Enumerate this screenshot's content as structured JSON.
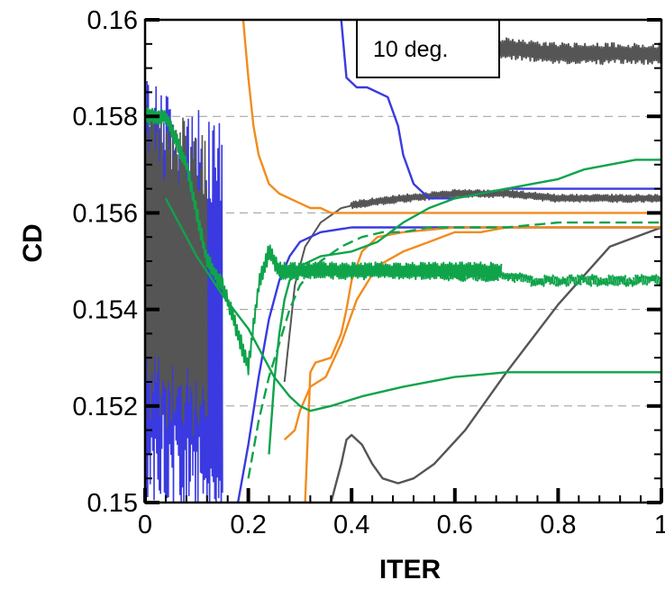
{
  "chart_data": {
    "type": "line",
    "title": "",
    "xlabel": "ITER",
    "ylabel": "CD",
    "xlim": [
      0,
      1
    ],
    "ylim": [
      0.15,
      0.16
    ],
    "x_ticks": [
      0,
      0.2,
      0.4,
      0.6,
      0.8,
      1
    ],
    "x_tick_labels": [
      "0",
      "0.2",
      "0.4",
      "0.6",
      "0.8",
      "1"
    ],
    "y_ticks": [
      0.15,
      0.152,
      0.154,
      0.156,
      0.158,
      0.16
    ],
    "y_tick_labels": [
      "0.15",
      "0.152",
      "0.154",
      "0.156",
      "0.158",
      "0.16"
    ],
    "grid": "horizontal dashed at major y ticks",
    "legend": "none",
    "annotation": "10 deg.",
    "colors": {
      "gray": "#555555",
      "blue": "#3a3ae0",
      "orange": "#f28c1e",
      "green": "#0fa34a"
    },
    "series": [
      {
        "color": "gray",
        "style": "solid",
        "noise": 8e-05,
        "noise_from": 0.4,
        "x": [
          0.27,
          0.29,
          0.31,
          0.34,
          0.38,
          0.42,
          0.5,
          0.6,
          0.7,
          0.8,
          0.9,
          1.0
        ],
        "y": [
          0.1525,
          0.1545,
          0.1553,
          0.1558,
          0.1561,
          0.1562,
          0.1563,
          0.1564,
          0.1564,
          0.1563,
          0.1563,
          0.1563
        ]
      },
      {
        "color": "gray",
        "style": "solid",
        "x": [
          0.36,
          0.38,
          0.39,
          0.4,
          0.42,
          0.44,
          0.46,
          0.49,
          0.52,
          0.56,
          0.62,
          0.7,
          0.8,
          0.9,
          1.0
        ],
        "y": [
          0.15,
          0.1508,
          0.1513,
          0.1514,
          0.1512,
          0.1508,
          0.1505,
          0.1504,
          0.1505,
          0.1508,
          0.1515,
          0.1527,
          0.1541,
          0.1553,
          0.1557
        ]
      },
      {
        "color": "gray",
        "style": "solid",
        "noise": 0.00022,
        "x": [
          0.67,
          0.7,
          0.8,
          0.9,
          1.0
        ],
        "y": [
          0.1594,
          0.1594,
          0.1593,
          0.1593,
          0.1593
        ]
      },
      {
        "color": "blue",
        "style": "solid",
        "x": [
          0.38,
          0.39,
          0.41,
          0.43,
          0.47,
          0.49,
          0.5,
          0.52,
          0.55,
          0.6,
          0.65,
          0.7,
          0.8,
          0.9,
          1.0
        ],
        "y": [
          0.16,
          0.1588,
          0.1586,
          0.1586,
          0.1584,
          0.1578,
          0.1572,
          0.1566,
          0.1563,
          0.1563,
          0.1564,
          0.1565,
          0.1565,
          0.1565,
          0.1565
        ]
      },
      {
        "color": "blue",
        "style": "solid",
        "x": [
          0.18,
          0.2,
          0.22,
          0.24,
          0.26,
          0.28,
          0.3,
          0.34,
          0.4,
          0.5,
          0.6,
          0.7,
          0.8,
          0.9,
          1.0
        ],
        "y": [
          0.15,
          0.1512,
          0.1526,
          0.1538,
          0.1546,
          0.1551,
          0.1554,
          0.1556,
          0.1557,
          0.1557,
          0.1557,
          0.1557,
          0.1557,
          0.1557,
          0.1557
        ]
      },
      {
        "color": "orange",
        "style": "solid",
        "x": [
          0.19,
          0.2,
          0.21,
          0.22,
          0.23,
          0.24,
          0.26,
          0.28,
          0.3,
          0.32,
          0.34,
          0.36,
          0.4,
          0.45,
          0.5,
          0.6,
          0.7,
          0.8,
          1.0
        ],
        "y": [
          0.16,
          0.1588,
          0.1578,
          0.1572,
          0.1569,
          0.1566,
          0.1564,
          0.1563,
          0.1562,
          0.1561,
          0.1561,
          0.156,
          0.156,
          0.156,
          0.156,
          0.156,
          0.156,
          0.156,
          0.156
        ]
      },
      {
        "color": "orange",
        "style": "solid",
        "x": [
          0.27,
          0.29,
          0.3,
          0.32,
          0.35,
          0.38,
          0.41,
          0.45,
          0.5,
          0.55,
          0.6,
          0.65,
          0.7,
          0.8,
          0.9,
          1.0
        ],
        "y": [
          0.1513,
          0.1515,
          0.1519,
          0.1524,
          0.1526,
          0.1533,
          0.1542,
          0.1549,
          0.1552,
          0.1554,
          0.1556,
          0.1556,
          0.1557,
          0.1557,
          0.1557,
          0.1557
        ]
      },
      {
        "color": "orange",
        "style": "solid",
        "x": [
          0.31,
          0.32,
          0.33,
          0.36,
          0.38,
          0.39,
          0.4,
          0.42,
          0.45,
          0.5,
          0.6,
          0.7
        ],
        "y": [
          0.15,
          0.1527,
          0.1529,
          0.153,
          0.1535,
          0.154,
          0.1546,
          0.1552,
          0.1555,
          0.1556,
          0.1557,
          0.1557
        ]
      },
      {
        "color": "green",
        "style": "solid",
        "x": [
          0.24,
          0.25,
          0.26,
          0.27,
          0.28,
          0.3,
          0.34,
          0.4,
          0.45,
          0.5,
          0.55,
          0.6,
          0.65,
          0.7,
          0.75,
          0.8,
          0.85,
          0.9,
          0.95,
          1.0
        ],
        "y": [
          0.151,
          0.1525,
          0.1535,
          0.1542,
          0.1546,
          0.1549,
          0.1551,
          0.1552,
          0.1554,
          0.1558,
          0.1561,
          0.1563,
          0.1564,
          0.1565,
          0.1566,
          0.1567,
          0.1569,
          0.157,
          0.1571,
          0.1571
        ]
      },
      {
        "color": "green",
        "style": "solid",
        "x": [
          0.04,
          0.1,
          0.15,
          0.2,
          0.25,
          0.28,
          0.3,
          0.32,
          0.36,
          0.42,
          0.5,
          0.6,
          0.7,
          0.8,
          0.9,
          1.0
        ],
        "y": [
          0.1563,
          0.1551,
          0.1543,
          0.1536,
          0.1526,
          0.1522,
          0.152,
          0.1519,
          0.152,
          0.1522,
          0.1524,
          0.1526,
          0.1527,
          0.1527,
          0.1527,
          0.1527
        ]
      },
      {
        "color": "green",
        "style": "dashed",
        "x": [
          0.2,
          0.22,
          0.24,
          0.26,
          0.28,
          0.3,
          0.34,
          0.38,
          0.42,
          0.46,
          0.5,
          0.55,
          0.6,
          0.7,
          0.8,
          0.9,
          1.0
        ],
        "y": [
          0.1505,
          0.1517,
          0.1526,
          0.1533,
          0.154,
          0.1545,
          0.155,
          0.1553,
          0.1555,
          0.1556,
          0.1556,
          0.1557,
          0.1557,
          0.1557,
          0.1558,
          0.1558,
          0.1558
        ]
      },
      {
        "color": "green",
        "style": "dashed",
        "noise": 0.00012,
        "x": [
          0.5,
          0.6,
          0.68,
          0.75,
          0.85,
          0.95,
          1.0
        ],
        "y": [
          0.1548,
          0.1547,
          0.1547,
          0.1546,
          0.1546,
          0.1546,
          0.1546
        ]
      },
      {
        "color": "green",
        "style": "solid",
        "noise": 0.00018,
        "x": [
          0.0,
          0.04,
          0.08,
          0.1,
          0.12,
          0.15,
          0.18,
          0.2,
          0.22,
          0.24,
          0.26,
          0.3,
          0.4,
          0.5,
          0.6,
          0.69
        ],
        "y": [
          0.158,
          0.158,
          0.157,
          0.156,
          0.155,
          0.1545,
          0.1535,
          0.1528,
          0.1545,
          0.1552,
          0.1548,
          0.1548,
          0.1548,
          0.1548,
          0.1548,
          0.1548
        ]
      }
    ]
  }
}
